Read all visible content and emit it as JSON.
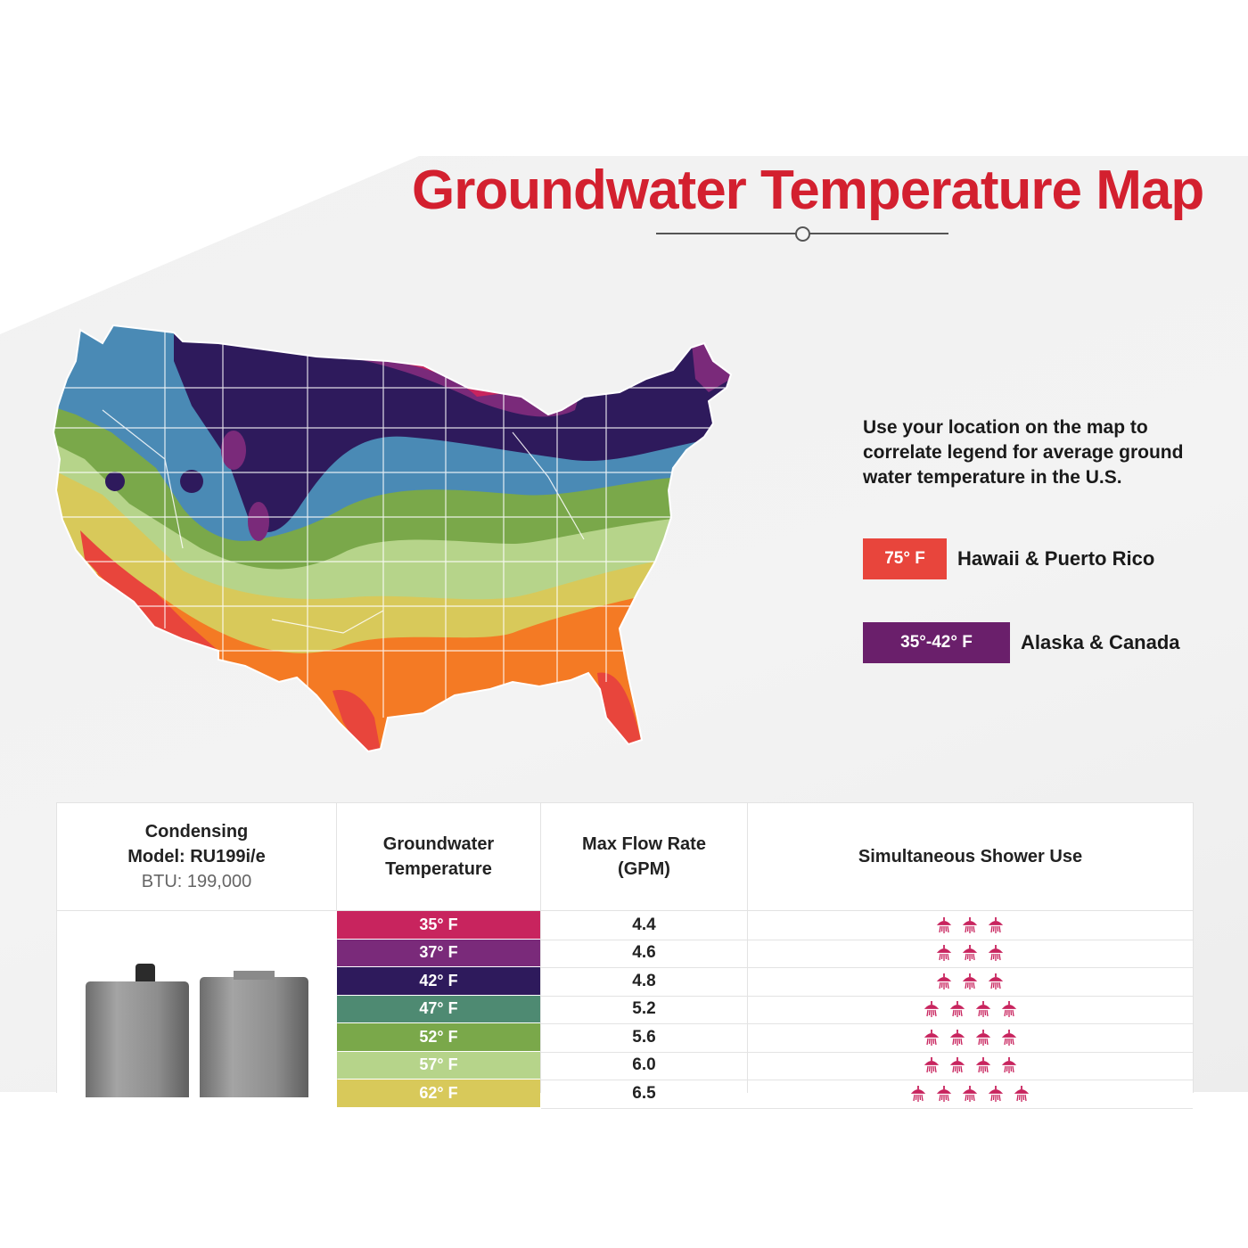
{
  "title": "Groundwater Temperature Map",
  "legend": {
    "intro": "Use your location on the map to correlate legend for average ground water temperature  in the U.S.",
    "items": [
      {
        "swatch": "75° F",
        "color": "#e8453c",
        "label": "Hawaii & Puerto Rico"
      },
      {
        "swatch": "35°-42° F",
        "color": "#6a1f6b",
        "label": "Alaska & Canada"
      }
    ]
  },
  "colors": {
    "title": "#d3202f",
    "zone_35": "#c8245e",
    "zone_37": "#7a2a7a",
    "zone_42": "#2e1a5c",
    "zone_47": "#4a8ab5",
    "zone_52": "#7aa84a",
    "zone_57": "#b6d48a",
    "zone_62": "#d8c95a",
    "zone_67": "#f47a24",
    "zone_72": "#e8453c"
  },
  "table": {
    "model": {
      "line1": "Condensing",
      "line2": "Model: RU199i/e",
      "line3": "BTU: 199,000"
    },
    "headers": {
      "groundwater": "Groundwater Temperature",
      "flow": "Max Flow Rate (GPM)",
      "shower": "Simultaneous Shower Use"
    },
    "rows": [
      {
        "temp": "35° F",
        "color": "#c8245e",
        "flow": "4.4",
        "showers": 3
      },
      {
        "temp": "37° F",
        "color": "#7a2a7a",
        "flow": "4.6",
        "showers": 3
      },
      {
        "temp": "42° F",
        "color": "#2e1a5c",
        "flow": "4.8",
        "showers": 3
      },
      {
        "temp": "47° F",
        "color": "#4e8a72",
        "flow": "5.2",
        "showers": 4
      },
      {
        "temp": "52° F",
        "color": "#7aa84a",
        "flow": "5.6",
        "showers": 4
      },
      {
        "temp": "57° F",
        "color": "#b6d48a",
        "flow": "6.0",
        "showers": 4
      },
      {
        "temp": "62° F",
        "color": "#d8c95a",
        "flow": "6.5",
        "showers": 5
      }
    ]
  }
}
